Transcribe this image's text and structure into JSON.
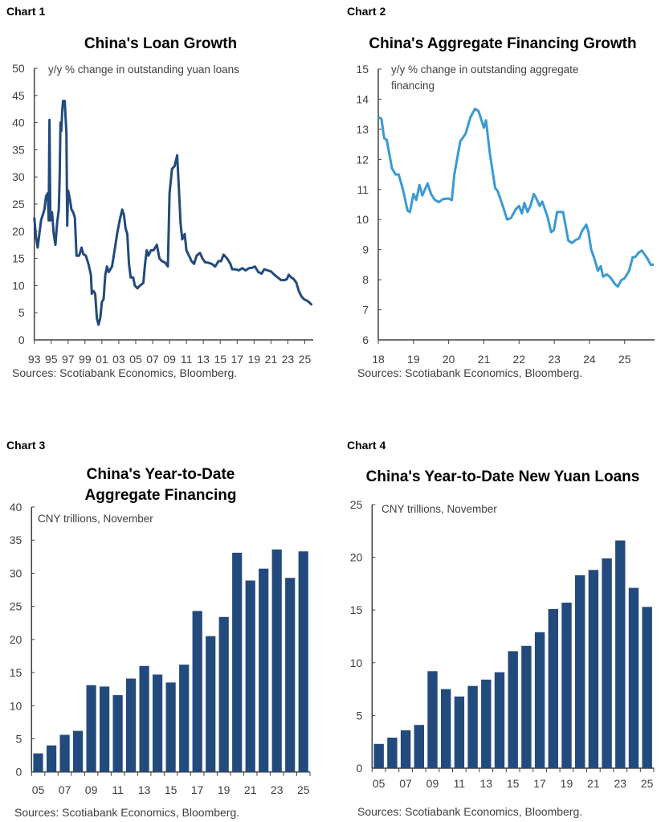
{
  "colors": {
    "dark_blue": "#234a7d",
    "light_blue": "#3a9ad3",
    "axis": "#404040"
  },
  "chart_data": [
    {
      "label": "Chart 1",
      "type": "line",
      "title": "China's  Loan Growth",
      "note": "y/y % change in outstanding yuan loans",
      "source": "Sources: Scotiabank Economics, Bloomberg.",
      "color": "#234a7d",
      "ylim": [
        0,
        50
      ],
      "yticks": [
        0,
        5,
        10,
        15,
        20,
        25,
        30,
        35,
        40,
        45,
        50
      ],
      "xlim": [
        1993,
        2026
      ],
      "xticks": [
        1993,
        1995,
        1997,
        1999,
        2001,
        2003,
        2005,
        2007,
        2009,
        2011,
        2013,
        2015,
        2017,
        2019,
        2021,
        2023,
        2025
      ],
      "xtick_labels": [
        "93",
        "95",
        "97",
        "99",
        "01",
        "03",
        "05",
        "07",
        "09",
        "11",
        "13",
        "15",
        "17",
        "19",
        "21",
        "23",
        "25"
      ],
      "x": [
        1993.0,
        1993.2,
        1993.4,
        1993.6,
        1993.8,
        1994.0,
        1994.2,
        1994.4,
        1994.6,
        1994.7,
        1994.8,
        1994.9,
        1995.1,
        1995.3,
        1995.5,
        1995.7,
        1995.9,
        1996.0,
        1996.1,
        1996.2,
        1996.3,
        1996.4,
        1996.6,
        1996.8,
        1996.9,
        1997.0,
        1997.2,
        1997.4,
        1997.6,
        1997.8,
        1998.0,
        1998.3,
        1998.6,
        1998.8,
        1999.1,
        1999.4,
        1999.7,
        1999.8,
        2000.0,
        2000.2,
        2000.4,
        2000.6,
        2000.8,
        2001.0,
        2001.2,
        2001.4,
        2001.6,
        2001.8,
        2002.0,
        2002.2,
        2002.5,
        2002.8,
        2003.1,
        2003.4,
        2003.6,
        2003.8,
        2004.0,
        2004.2,
        2004.4,
        2004.7,
        2004.9,
        2005.2,
        2005.5,
        2005.9,
        2006.1,
        2006.3,
        2006.5,
        2006.8,
        2007.1,
        2007.5,
        2007.8,
        2008.1,
        2008.5,
        2008.8,
        2009.0,
        2009.3,
        2009.6,
        2009.9,
        2010.1,
        2010.3,
        2010.5,
        2010.8,
        2011.0,
        2011.3,
        2011.6,
        2011.9,
        2012.2,
        2012.6,
        2012.9,
        2013.2,
        2013.6,
        2014.0,
        2014.4,
        2014.8,
        2015.1,
        2015.4,
        2015.8,
        2016.2,
        2016.4,
        2016.8,
        2017.2,
        2017.6,
        2018.0,
        2018.4,
        2018.8,
        2019.1,
        2019.5,
        2019.9,
        2020.2,
        2020.6,
        2021.0,
        2021.4,
        2021.8,
        2022.2,
        2022.6,
        2022.9,
        2023.1,
        2023.4,
        2023.7,
        2024.0,
        2024.3,
        2024.6,
        2024.9,
        2025.3,
        2025.6,
        2025.85
      ],
      "y": [
        22.5,
        19,
        17,
        19.5,
        22,
        23,
        24,
        26.5,
        27,
        22,
        40.5,
        22,
        23.5,
        19.5,
        17.5,
        21.5,
        24,
        30,
        40,
        38.5,
        42,
        44,
        44,
        38,
        21,
        27.5,
        26,
        24,
        23.5,
        22.5,
        15.5,
        15.5,
        17,
        15.8,
        15.5,
        14,
        12,
        8.5,
        9,
        8.5,
        4,
        2.8,
        4,
        7,
        7.5,
        12,
        13.5,
        12.5,
        13,
        13.5,
        16.5,
        19.5,
        22,
        24,
        23,
        20.5,
        19.5,
        14,
        11.5,
        11.5,
        10,
        9.5,
        10,
        10.5,
        14,
        16.5,
        15.5,
        16.5,
        16.5,
        17.5,
        15,
        14.5,
        14.2,
        13.5,
        27,
        31.5,
        32,
        34,
        28,
        21.5,
        18.5,
        19.5,
        16.5,
        15.5,
        14.5,
        14,
        15.5,
        16,
        15,
        14.3,
        14.2,
        14,
        13.5,
        14.5,
        14.5,
        15.7,
        15,
        14,
        13,
        13,
        12.8,
        13.2,
        12.8,
        13.2,
        13.3,
        13.5,
        12.5,
        12.2,
        13,
        12.8,
        12.6,
        12,
        11.5,
        11,
        11,
        11.2,
        12,
        11.5,
        11.2,
        10.5,
        9,
        8,
        7.5,
        7.2,
        6.8,
        6.4
      ]
    },
    {
      "label": "Chart 2",
      "type": "line",
      "title": "China's Aggregate Financing Growth",
      "note": "y/y % change in outstanding aggregate",
      "note2": "financing",
      "source": "Sources: Scotiabank Economics, Bloomberg.",
      "color": "#3a9ad3",
      "ylim": [
        6,
        15
      ],
      "yticks": [
        6,
        7,
        8,
        9,
        10,
        11,
        12,
        13,
        14,
        15
      ],
      "xlim": [
        2018,
        2025.85
      ],
      "xticks": [
        2018,
        2019,
        2020,
        2021,
        2022,
        2023,
        2024,
        2025
      ],
      "xtick_labels": [
        "18",
        "19",
        "20",
        "21",
        "22",
        "23",
        "24",
        "25"
      ],
      "x": [
        2018.0,
        2018.09,
        2018.17,
        2018.24,
        2018.39,
        2018.49,
        2018.58,
        2018.7,
        2018.83,
        2018.9,
        2019.0,
        2019.08,
        2019.17,
        2019.25,
        2019.4,
        2019.5,
        2019.61,
        2019.72,
        2019.84,
        2019.99,
        2020.09,
        2020.16,
        2020.33,
        2020.48,
        2020.62,
        2020.75,
        2020.85,
        2021.0,
        2021.06,
        2021.17,
        2021.32,
        2021.39,
        2021.51,
        2021.66,
        2021.77,
        2021.91,
        2022.0,
        2022.08,
        2022.15,
        2022.24,
        2022.32,
        2022.42,
        2022.49,
        2022.59,
        2022.66,
        2022.82,
        2022.91,
        2022.99,
        2023.08,
        2023.25,
        2023.4,
        2023.5,
        2023.61,
        2023.71,
        2023.78,
        2023.91,
        2023.97,
        2024.05,
        2024.14,
        2024.24,
        2024.32,
        2024.39,
        2024.49,
        2024.58,
        2024.73,
        2024.81,
        2024.9,
        2025.0,
        2025.13,
        2025.23,
        2025.3,
        2025.4,
        2025.49,
        2025.65,
        2025.74,
        2025.83
      ],
      "y": [
        13.4,
        13.35,
        12.7,
        12.65,
        11.7,
        11.5,
        11.5,
        11.0,
        10.3,
        10.25,
        10.85,
        10.65,
        11.15,
        10.8,
        11.2,
        10.85,
        10.65,
        10.58,
        10.68,
        10.7,
        10.65,
        11.5,
        12.6,
        12.85,
        13.4,
        13.68,
        13.6,
        13.05,
        13.3,
        12.2,
        11.05,
        10.95,
        10.55,
        10.0,
        10.05,
        10.35,
        10.45,
        10.2,
        10.55,
        10.25,
        10.45,
        10.85,
        10.7,
        10.45,
        10.6,
        10.05,
        9.58,
        9.65,
        10.25,
        10.25,
        9.3,
        9.22,
        9.32,
        9.38,
        9.6,
        9.83,
        9.6,
        9.0,
        8.7,
        8.3,
        8.45,
        8.1,
        8.18,
        8.1,
        7.85,
        7.77,
        7.98,
        8.05,
        8.3,
        8.75,
        8.75,
        8.9,
        8.97,
        8.7,
        8.5,
        8.5
      ]
    },
    {
      "label": "Chart 3",
      "type": "bar",
      "title": "China's Year-to-Date",
      "title2": "Aggregate Financing",
      "note": "CNY trillions, November",
      "source": "Sources: Scotiabank Economics, Bloomberg.",
      "color": "#234a7d",
      "ylim": [
        0,
        40
      ],
      "yticks": [
        0,
        5,
        10,
        15,
        20,
        25,
        30,
        35,
        40
      ],
      "categories": [
        "05",
        "06",
        "07",
        "08",
        "09",
        "10",
        "11",
        "12",
        "13",
        "14",
        "15",
        "16",
        "17",
        "18",
        "19",
        "20",
        "21",
        "22",
        "23",
        "24",
        "25"
      ],
      "xtick_labels": [
        "05",
        "07",
        "09",
        "11",
        "13",
        "15",
        "17",
        "19",
        "21",
        "23",
        "25"
      ],
      "values": [
        2.8,
        4.0,
        5.6,
        6.2,
        13.1,
        12.9,
        11.6,
        14.1,
        16.0,
        14.7,
        13.5,
        16.2,
        24.3,
        20.5,
        23.4,
        33.1,
        28.9,
        30.7,
        33.6,
        29.3,
        33.3
      ]
    },
    {
      "label": "Chart 4",
      "type": "bar",
      "title": "China's Year-to-Date New Yuan Loans",
      "note": "CNY trillions, November",
      "source": "Sources: Scotiabank Economics, Bloomberg.",
      "color": "#234a7d",
      "ylim": [
        0,
        25
      ],
      "yticks": [
        0,
        5,
        10,
        15,
        20,
        25
      ],
      "categories": [
        "05",
        "06",
        "07",
        "08",
        "09",
        "10",
        "11",
        "12",
        "13",
        "14",
        "15",
        "16",
        "17",
        "18",
        "19",
        "20",
        "21",
        "22",
        "23",
        "24",
        "25"
      ],
      "xtick_labels": [
        "05",
        "07",
        "09",
        "11",
        "13",
        "15",
        "17",
        "19",
        "21",
        "23",
        "25"
      ],
      "values": [
        2.3,
        2.9,
        3.6,
        4.1,
        9.2,
        7.5,
        6.8,
        7.8,
        8.4,
        9.1,
        11.1,
        11.6,
        12.9,
        15.1,
        15.7,
        18.3,
        18.8,
        19.9,
        21.6,
        17.1,
        15.3
      ]
    }
  ]
}
